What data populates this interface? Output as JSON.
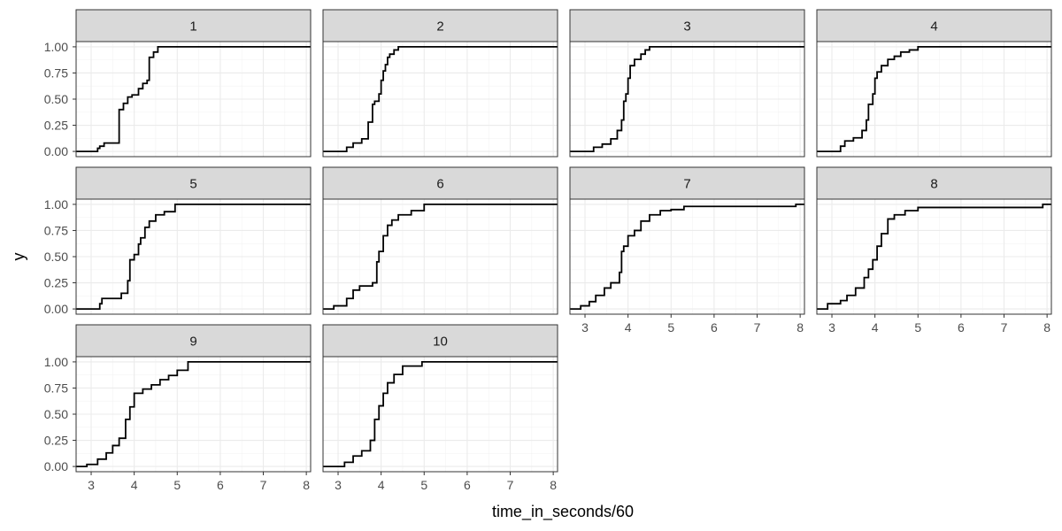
{
  "chart_data": {
    "type": "line",
    "style": "step (empirical cumulative distribution), faceted 4 columns",
    "xlabel": "time_in_seconds/60",
    "ylabel": "y",
    "xlim": [
      2.65,
      8.1
    ],
    "ylim": [
      -0.05,
      1.05
    ],
    "x_ticks": [
      "3",
      "4",
      "5",
      "6",
      "7",
      "8"
    ],
    "y_ticks": [
      "0.00",
      "0.25",
      "0.50",
      "0.75",
      "1.00"
    ],
    "grid": true,
    "line_color": "#000000",
    "strip_color": "#d9d9d9",
    "panels": [
      {
        "label": "1",
        "x": [
          2.65,
          3.15,
          3.2,
          3.3,
          3.6,
          3.65,
          3.75,
          3.85,
          3.95,
          4.1,
          4.2,
          4.3,
          4.35,
          4.45,
          4.55,
          8.1
        ],
        "y": [
          0,
          0.03,
          0.05,
          0.08,
          0.08,
          0.4,
          0.46,
          0.52,
          0.54,
          0.6,
          0.65,
          0.68,
          0.9,
          0.95,
          1,
          1
        ]
      },
      {
        "label": "2",
        "x": [
          2.65,
          3.2,
          3.35,
          3.55,
          3.7,
          3.8,
          3.85,
          3.95,
          4.0,
          4.05,
          4.1,
          4.15,
          4.2,
          4.3,
          4.4,
          8.1
        ],
        "y": [
          0,
          0.04,
          0.08,
          0.12,
          0.28,
          0.45,
          0.48,
          0.55,
          0.68,
          0.77,
          0.83,
          0.9,
          0.93,
          0.97,
          1,
          1
        ]
      },
      {
        "label": "3",
        "x": [
          2.65,
          3.2,
          3.4,
          3.6,
          3.75,
          3.85,
          3.9,
          3.95,
          4.0,
          4.05,
          4.15,
          4.3,
          4.4,
          4.5,
          8.1
        ],
        "y": [
          0,
          0.04,
          0.07,
          0.12,
          0.2,
          0.3,
          0.48,
          0.55,
          0.7,
          0.82,
          0.88,
          0.93,
          0.97,
          1,
          1
        ]
      },
      {
        "label": "4",
        "x": [
          2.65,
          3.2,
          3.3,
          3.5,
          3.7,
          3.8,
          3.85,
          3.95,
          4.0,
          4.05,
          4.15,
          4.3,
          4.45,
          4.6,
          4.8,
          5.0,
          8.1
        ],
        "y": [
          0,
          0.05,
          0.1,
          0.13,
          0.2,
          0.3,
          0.45,
          0.55,
          0.7,
          0.76,
          0.82,
          0.88,
          0.91,
          0.95,
          0.97,
          1,
          1
        ]
      },
      {
        "label": "5",
        "x": [
          2.65,
          3.2,
          3.25,
          3.7,
          3.85,
          3.9,
          4.0,
          4.1,
          4.15,
          4.25,
          4.35,
          4.5,
          4.7,
          4.95,
          8.1
        ],
        "y": [
          0,
          0.05,
          0.1,
          0.15,
          0.27,
          0.47,
          0.52,
          0.62,
          0.68,
          0.78,
          0.84,
          0.9,
          0.93,
          1,
          1
        ]
      },
      {
        "label": "6",
        "x": [
          2.65,
          2.9,
          3.2,
          3.35,
          3.5,
          3.8,
          3.9,
          3.95,
          4.05,
          4.15,
          4.25,
          4.4,
          4.7,
          5.0,
          8.1
        ],
        "y": [
          0,
          0.03,
          0.1,
          0.18,
          0.22,
          0.25,
          0.45,
          0.55,
          0.7,
          0.8,
          0.85,
          0.9,
          0.94,
          1,
          1
        ]
      },
      {
        "label": "7",
        "x": [
          2.65,
          2.9,
          3.1,
          3.25,
          3.45,
          3.6,
          3.8,
          3.85,
          3.9,
          4.0,
          4.15,
          4.3,
          4.5,
          4.75,
          5.0,
          5.3,
          7.9,
          8.1
        ],
        "y": [
          0,
          0.03,
          0.07,
          0.13,
          0.2,
          0.25,
          0.35,
          0.55,
          0.6,
          0.7,
          0.75,
          0.84,
          0.9,
          0.94,
          0.95,
          0.98,
          1,
          1
        ]
      },
      {
        "label": "8",
        "x": [
          2.65,
          2.9,
          3.2,
          3.35,
          3.55,
          3.75,
          3.85,
          3.95,
          4.05,
          4.15,
          4.3,
          4.45,
          4.7,
          5.0,
          7.9,
          8.1
        ],
        "y": [
          0,
          0.05,
          0.08,
          0.13,
          0.2,
          0.3,
          0.38,
          0.47,
          0.6,
          0.72,
          0.86,
          0.9,
          0.94,
          0.97,
          1,
          1
        ]
      },
      {
        "label": "9",
        "x": [
          2.65,
          2.9,
          3.15,
          3.35,
          3.5,
          3.65,
          3.8,
          3.9,
          4.0,
          4.2,
          4.4,
          4.6,
          4.8,
          5.0,
          5.25,
          8.1
        ],
        "y": [
          0,
          0.02,
          0.07,
          0.13,
          0.2,
          0.27,
          0.45,
          0.57,
          0.7,
          0.74,
          0.78,
          0.83,
          0.87,
          0.92,
          1,
          1
        ]
      },
      {
        "label": "10",
        "x": [
          2.65,
          3.15,
          3.35,
          3.55,
          3.75,
          3.85,
          3.95,
          4.05,
          4.15,
          4.3,
          4.5,
          4.95,
          8.1
        ],
        "y": [
          0,
          0.04,
          0.1,
          0.15,
          0.25,
          0.45,
          0.58,
          0.7,
          0.8,
          0.88,
          0.96,
          1,
          1
        ]
      }
    ]
  }
}
